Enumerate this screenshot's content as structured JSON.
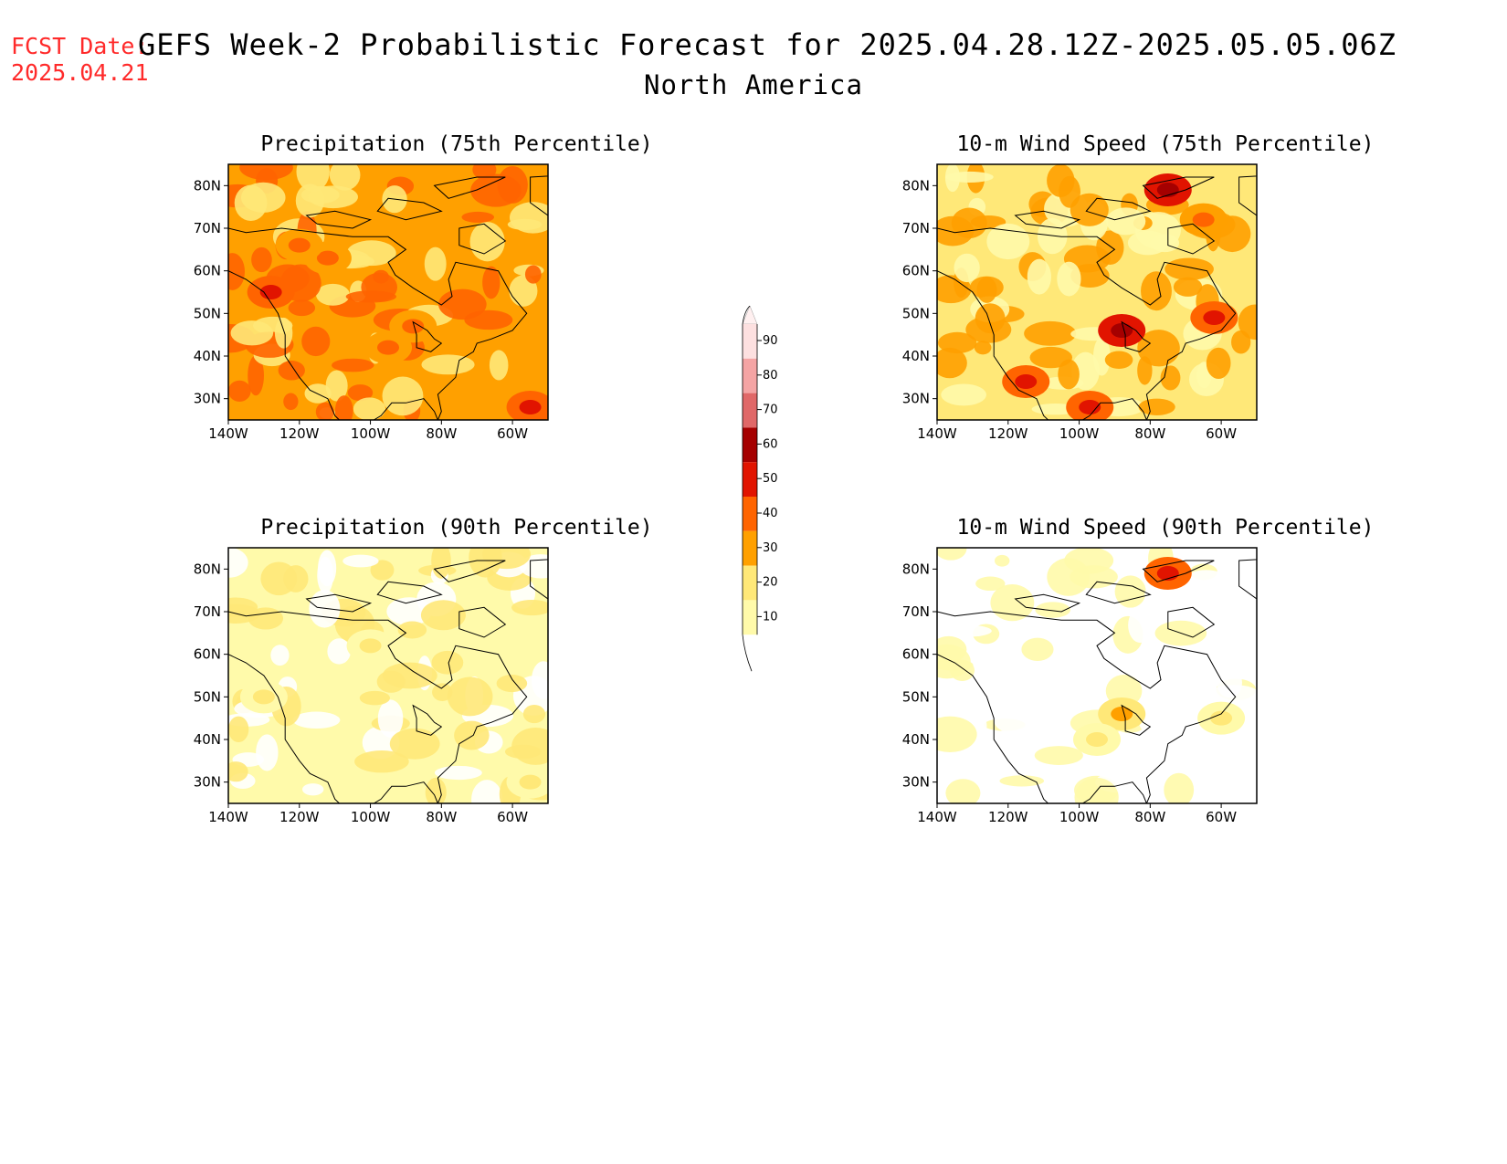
{
  "header": {
    "fcst_label": "FCST Date:",
    "fcst_date": "2025.04.21",
    "title": "GEFS Week-2 Probabilistic Forecast for 2025.04.28.12Z-2025.05.05.06Z",
    "subtitle": "North America"
  },
  "panels": [
    {
      "id": "precip75",
      "title": "Precipitation (75th Percentile)",
      "base_level": 30,
      "hotspots": [
        {
          "lon": -128,
          "lat": 55,
          "level": 50
        },
        {
          "lon": -95,
          "lat": 42,
          "level": 40
        },
        {
          "lon": -112,
          "lat": 63,
          "level": 40
        },
        {
          "lon": -55,
          "lat": 28,
          "level": 50
        },
        {
          "lon": -120,
          "lat": 66,
          "level": 40
        },
        {
          "lon": -88,
          "lat": 47,
          "level": 40
        }
      ]
    },
    {
      "id": "wind75",
      "title": "10-m Wind Speed (75th Percentile)",
      "base_level": 20,
      "hotspots": [
        {
          "lon": -88,
          "lat": 46,
          "level": 60
        },
        {
          "lon": -75,
          "lat": 79,
          "level": 60
        },
        {
          "lon": -62,
          "lat": 49,
          "level": 50
        },
        {
          "lon": -115,
          "lat": 34,
          "level": 50
        },
        {
          "lon": -97,
          "lat": 28,
          "level": 50
        },
        {
          "lon": -65,
          "lat": 72,
          "level": 40
        }
      ]
    },
    {
      "id": "precip90",
      "title": "Precipitation (90th Percentile)",
      "base_level": 10,
      "hotspots": [
        {
          "lon": -100,
          "lat": 62,
          "level": 20
        },
        {
          "lon": -130,
          "lat": 50,
          "level": 20
        },
        {
          "lon": -55,
          "lat": 30,
          "level": 20
        }
      ]
    },
    {
      "id": "wind90",
      "title": "10-m Wind Speed (90th Percentile)",
      "base_level": 0,
      "hotspots": [
        {
          "lon": -88,
          "lat": 46,
          "level": 30
        },
        {
          "lon": -75,
          "lat": 79,
          "level": 50
        },
        {
          "lon": -95,
          "lat": 40,
          "level": 20
        },
        {
          "lon": -60,
          "lat": 45,
          "level": 20
        }
      ]
    }
  ],
  "axes": {
    "lat_labels": [
      "80N",
      "70N",
      "60N",
      "50N",
      "40N",
      "30N"
    ],
    "lat_values": [
      80,
      70,
      60,
      50,
      40,
      30
    ],
    "lon_labels": [
      "140W",
      "120W",
      "100W",
      "80W",
      "60W"
    ],
    "lon_values": [
      -140,
      -120,
      -100,
      -80,
      -60
    ],
    "lon_range": [
      -140,
      -50
    ],
    "lat_range": [
      25,
      85
    ]
  },
  "colorbar": {
    "labels": [
      "10",
      "20",
      "30",
      "40",
      "50",
      "60",
      "70",
      "80",
      "90"
    ],
    "colors": [
      "#fffaaa",
      "#ffe878",
      "#ffa000",
      "#ff6400",
      "#e11400",
      "#a50000",
      "#e06868",
      "#f4a4a4",
      "#fde0e0",
      "#fff0f0"
    ]
  }
}
